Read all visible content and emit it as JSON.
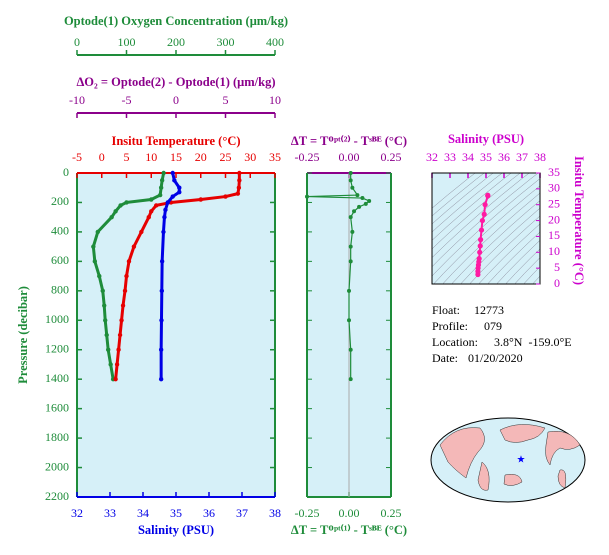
{
  "chart_data": [
    {
      "type": "line",
      "ylabel": "Pressure (decibar)",
      "ylim": [
        0,
        2200
      ],
      "y_inverted": true,
      "yticks": [
        0,
        200,
        400,
        600,
        800,
        1000,
        1200,
        1400,
        1600,
        1800,
        2000,
        2200
      ],
      "ycolor": "#1e8c3a",
      "background": "#d6f0f8",
      "x_axes": [
        {
          "label": "Optode(1) Oxygen Concentration (μm/kg)",
          "xlim": [
            0,
            400
          ],
          "xticks": [
            0,
            100,
            200,
            300,
            400
          ],
          "color": "#1e8c3a",
          "position": "top"
        },
        {
          "label": "ΔO₂ = Optode(2) - Optode(1)   (μm/kg)",
          "xlim": [
            -10,
            10
          ],
          "xticks": [
            -10,
            -5,
            0,
            5,
            10
          ],
          "color": "#8b008b",
          "position": "top"
        },
        {
          "label": "Insitu Temperature (°C)",
          "xlim": [
            -5,
            35
          ],
          "xticks": [
            -5,
            0,
            5,
            10,
            15,
            20,
            25,
            30,
            35
          ],
          "color": "#e60000",
          "position": "top"
        },
        {
          "label": "Salinity (PSU)",
          "xlim": [
            32,
            38
          ],
          "xticks": [
            32,
            33,
            34,
            35,
            36,
            37,
            38
          ],
          "color": "#0000e6",
          "position": "bottom"
        }
      ],
      "series": [
        {
          "x_axis": 0,
          "color": "#1e8c3a",
          "y": [
            0,
            50,
            100,
            150,
            180,
            200,
            220,
            260,
            300,
            400,
            500,
            600,
            700,
            800,
            900,
            1000,
            1100,
            1200,
            1300,
            1400
          ],
          "values": [
            175,
            172,
            170,
            168,
            150,
            100,
            88,
            78,
            70,
            42,
            33,
            36,
            45,
            52,
            55,
            57,
            60,
            63,
            68,
            73
          ]
        },
        {
          "x_axis": 2,
          "color": "#e60000",
          "y": [
            0,
            50,
            100,
            140,
            160,
            180,
            200,
            220,
            260,
            300,
            400,
            500,
            600,
            700,
            800,
            900,
            1000,
            1100,
            1200,
            1300,
            1400
          ],
          "values": [
            27.8,
            27.8,
            27.7,
            27.5,
            25,
            20,
            14,
            11,
            10,
            9.5,
            8,
            6.5,
            5.5,
            5.0,
            4.7,
            4.3,
            4.0,
            3.7,
            3.4,
            3.1,
            2.8
          ]
        },
        {
          "x_axis": 3,
          "color": "#0000e6",
          "y": [
            0,
            50,
            100,
            130,
            160,
            200,
            250,
            300,
            400,
            600,
            800,
            1000,
            1200,
            1400
          ],
          "values": [
            34.9,
            34.95,
            35.1,
            35.1,
            34.9,
            34.75,
            34.68,
            34.65,
            34.62,
            34.58,
            34.57,
            34.56,
            34.55,
            34.55
          ]
        }
      ]
    },
    {
      "type": "line",
      "xlabel_top": "ΔT = Tᴼᵖᵗ⁽²⁾ - Tˢᴮᴱ (°C)",
      "xlabel_bottom": "ΔT = Tᴼᵖᵗ⁽¹⁾ - Tˢᴮᴱ (°C)",
      "top_color": "#8b008b",
      "bottom_color": "#1e8c3a",
      "xlim": [
        -0.25,
        0.25
      ],
      "xticks": [
        -0.25,
        {
          "value": 0,
          "label": "0.00"
        },
        0.25
      ],
      "ylim": [
        0,
        2200
      ],
      "y_inverted": true,
      "yticks": [
        0,
        200,
        400,
        600,
        800,
        1000,
        1200,
        1400,
        1600,
        1800,
        2000,
        2200
      ],
      "background": "#d6f0f8",
      "series": [
        {
          "color": "#1e8c3a",
          "y": [
            0,
            50,
            100,
            150,
            160,
            170,
            190,
            210,
            230,
            260,
            300,
            400,
            500,
            600,
            800,
            1000,
            1200,
            1400
          ],
          "values": [
            0.01,
            0.01,
            0.02,
            0.05,
            -0.25,
            0.08,
            0.12,
            0.1,
            0.06,
            0.03,
            0.01,
            0.02,
            0.01,
            0.01,
            0.0,
            0.0,
            0.01,
            0.01
          ]
        }
      ]
    },
    {
      "type": "scatter",
      "xlabel": "Salinity (PSU)",
      "ylabel": "Insitu Temperature (°C)",
      "xlim": [
        32,
        38
      ],
      "xticks": [
        32,
        33,
        34,
        35,
        36,
        37,
        38
      ],
      "ylim": [
        0,
        35
      ],
      "yticks": [
        0,
        5,
        10,
        15,
        20,
        25,
        30,
        35
      ],
      "axis_color": "#cc00cc",
      "background": "#d6f0f8",
      "series": [
        {
          "color": "#ff1aa3",
          "x": [
            35.1,
            35.1,
            34.95,
            34.9,
            34.8,
            34.75,
            34.7,
            34.68,
            34.65,
            34.62,
            34.6,
            34.58,
            34.56,
            34.55,
            34.55
          ],
          "values": [
            28,
            27.8,
            25,
            22,
            20,
            17,
            14,
            12,
            10,
            8,
            7,
            6,
            5,
            4,
            3
          ]
        }
      ]
    }
  ],
  "info": [
    {
      "label": "Float:",
      "value": "12773"
    },
    {
      "label": "Profile:",
      "value": "079"
    },
    {
      "label": "Location:",
      "value": "3.8°N  -159.0°E"
    },
    {
      "label": "Date:",
      "value": "01/20/2020"
    }
  ]
}
